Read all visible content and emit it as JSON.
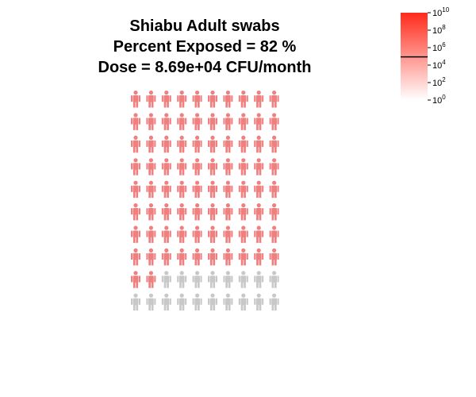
{
  "chart_data": {
    "type": "icon-array",
    "title_lines": [
      "Shiabu Adult swabs",
      "Percent Exposed = 82 %",
      "Dose = 8.69e+04 CFU/month"
    ],
    "percent_exposed": 82,
    "total_icons": 100,
    "rows": 10,
    "cols": 10,
    "exposed_color": "#f08080",
    "unexposed_color": "#c8c8c8",
    "dose_value": 86900,
    "colorbar": {
      "scale": "log10",
      "range": [
        1,
        10000000000
      ],
      "ticks": [
        {
          "value": 1,
          "base": "10",
          "exp": "0"
        },
        {
          "value": 100,
          "base": "10",
          "exp": "2"
        },
        {
          "value": 10000,
          "base": "10",
          "exp": "4"
        },
        {
          "value": 1000000,
          "base": "10",
          "exp": "6"
        },
        {
          "value": 100000000,
          "base": "10",
          "exp": "8"
        },
        {
          "value": 10000000000,
          "base": "10",
          "exp": "10"
        }
      ],
      "color_low": "#ffffff",
      "color_high": "#ff2a1a",
      "marker_value": 86900
    }
  }
}
